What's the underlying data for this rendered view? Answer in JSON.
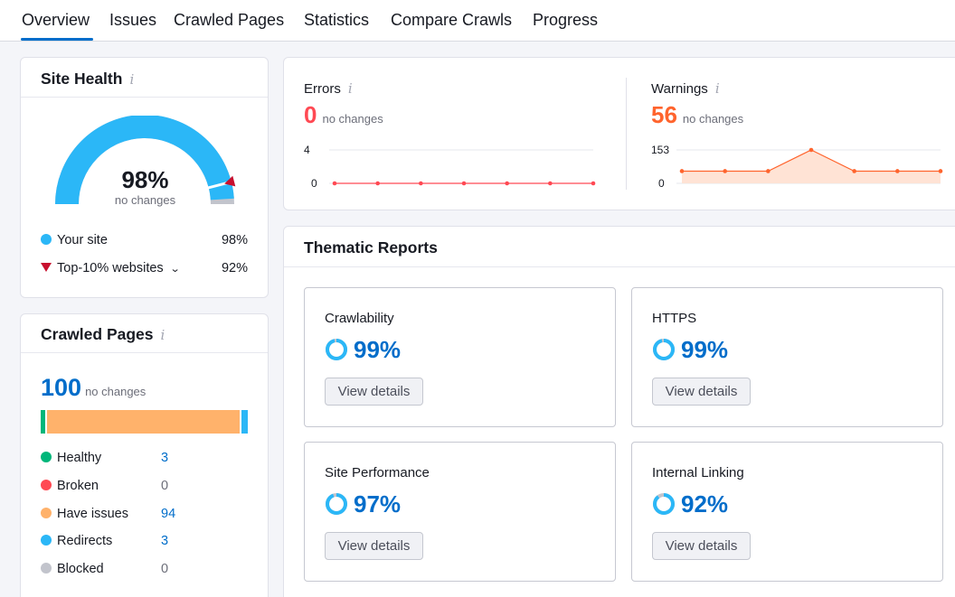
{
  "tabs": [
    {
      "label": "Overview",
      "active": true
    },
    {
      "label": "Issues"
    },
    {
      "label": "Crawled Pages"
    },
    {
      "label": "Statistics"
    },
    {
      "label": "Compare Crawls"
    },
    {
      "label": "Progress"
    }
  ],
  "site_health": {
    "title": "Site Health",
    "info_icon": "i",
    "value": "98%",
    "value_fraction": 0.98,
    "top10_fraction": 0.92,
    "subtitle": "no changes",
    "legend": [
      {
        "label": "Your site",
        "value": "98%",
        "marker": "dot",
        "color": "#2bb7f7"
      },
      {
        "label": "Top-10% websites",
        "value": "92%",
        "marker": "triangle",
        "color": "#c8102e",
        "has_dropdown": true
      }
    ]
  },
  "crawled_pages": {
    "title": "Crawled Pages",
    "info_icon": "i",
    "total": "100",
    "subtitle": "no changes",
    "bar_segments": [
      {
        "name": "Healthy",
        "count": 3,
        "color": "#00b67a"
      },
      {
        "name": "Broken",
        "count": 0,
        "color": "#ff4953"
      },
      {
        "name": "Have issues",
        "count": 94,
        "color": "#ffb26b"
      },
      {
        "name": "Redirects",
        "count": 3,
        "color": "#2bb7f7"
      }
    ],
    "items": [
      {
        "label": "Healthy",
        "value": "3",
        "color": "#00b67a",
        "style": "link"
      },
      {
        "label": "Broken",
        "value": "0",
        "color": "#ff4953",
        "style": "zero"
      },
      {
        "label": "Have issues",
        "value": "94",
        "color": "#ffb26b",
        "style": "link"
      },
      {
        "label": "Redirects",
        "value": "3",
        "color": "#2bb7f7",
        "style": "link"
      },
      {
        "label": "Blocked",
        "value": "0",
        "color": "#c2c4cc",
        "style": "zero"
      }
    ]
  },
  "errors": {
    "label": "Errors",
    "info_icon": "i",
    "value": "0",
    "subtitle": "no changes",
    "color": "#ff4953",
    "y_ticks": [
      "4",
      "0"
    ],
    "ymax": 4,
    "series": [
      0,
      0,
      0,
      0,
      0,
      0,
      0
    ]
  },
  "warnings": {
    "label": "Warnings",
    "info_icon": "i",
    "value": "56",
    "subtitle": "no changes",
    "color": "#ff642d",
    "y_ticks": [
      "153",
      "0"
    ],
    "ymax": 153,
    "series": [
      56,
      56,
      56,
      153,
      56,
      56,
      56
    ]
  },
  "thematic": {
    "title": "Thematic Reports",
    "view_label": "View details",
    "reports": [
      {
        "name": "Crawlability",
        "value": "99%",
        "fraction": 0.99
      },
      {
        "name": "HTTPS",
        "value": "99%",
        "fraction": 0.99
      },
      {
        "name": "Site Performance",
        "value": "97%",
        "fraction": 0.97
      },
      {
        "name": "Internal Linking",
        "value": "92%",
        "fraction": 0.92
      }
    ]
  }
}
